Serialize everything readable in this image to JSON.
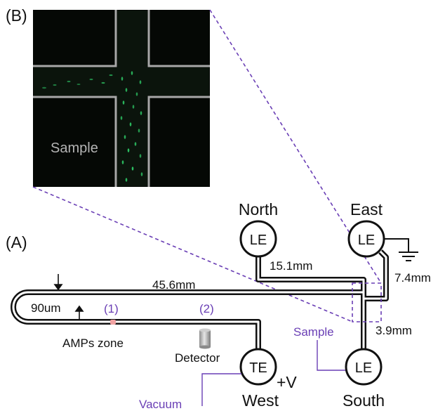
{
  "panel_b": {
    "label": "(B)",
    "sample_label": "Sample"
  },
  "panel_a": {
    "label": "(A)",
    "reservoirs": {
      "north": {
        "code": "LE",
        "name": "North"
      },
      "east": {
        "code": "LE",
        "name": "East"
      },
      "south": {
        "code": "LE",
        "name": "South"
      },
      "west": {
        "code": "TE",
        "name": "West",
        "voltage": "+V"
      }
    },
    "dimensions": {
      "north_channel": "15.1mm",
      "east_channel": "7.4mm",
      "main_channel": "45.6mm",
      "south_channel": "3.9mm",
      "width": "90um"
    },
    "markers": {
      "zone_1_index": "(1)",
      "zone_1_label": "AMPs zone",
      "zone_2_index": "(2)",
      "detector_label": "Detector",
      "sample_label": "Sample",
      "vacuum_label": "Vacuum"
    }
  },
  "colors": {
    "accent_purple": "#6a3fb5",
    "fluorescence_green": "#2fd06a",
    "channel_black": "#111111"
  }
}
